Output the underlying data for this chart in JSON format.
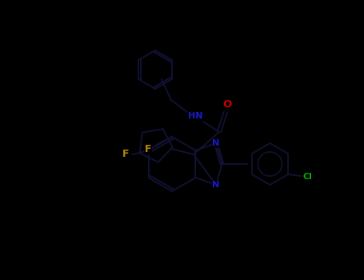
{
  "background_color": "#000000",
  "bond_color": "#111133",
  "figsize": [
    4.55,
    3.5
  ],
  "dpi": 100,
  "atom_colors": {
    "O": "#cc0000",
    "N": "#1a1acd",
    "F": "#b8860b",
    "Cl": "#00aa00",
    "C": "#111133"
  },
  "lw": 1.4
}
